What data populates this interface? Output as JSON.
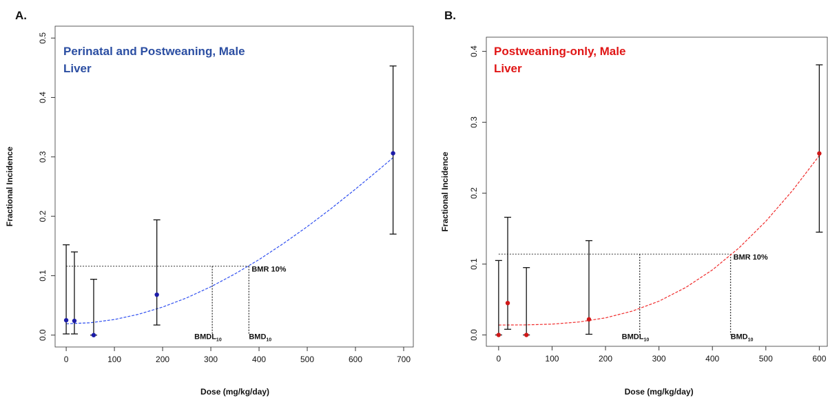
{
  "chart_data": [
    {
      "type": "scatter",
      "panel_label": "A.",
      "title_lines": [
        "Perinatal and Postweaning, Male",
        "Liver"
      ],
      "title_color": "#2b4ea2",
      "x_label": "Dose (mg/kg/day)",
      "y_label": "Fractional Incidence",
      "xlim": [
        -23,
        720
      ],
      "ylim": [
        -0.02,
        0.52
      ],
      "xticks": [
        0,
        100,
        200,
        300,
        400,
        500,
        600,
        700
      ],
      "yticks": [
        {
          "value": 0,
          "label": "0.0"
        },
        0.1,
        0.2,
        0.3,
        0.4,
        0.5
      ],
      "x": [
        0,
        17,
        57,
        188,
        678
      ],
      "values": [
        0.025,
        0.024,
        0.0,
        0.068,
        0.306
      ],
      "lower": [
        0.002,
        0.002,
        0.0,
        0.017,
        0.17
      ],
      "upper": [
        0.152,
        0.14,
        0.094,
        0.194,
        0.453
      ],
      "color": "#1c1ca8",
      "fit": {
        "x": [
          0,
          50,
          100,
          150,
          200,
          250,
          300,
          350,
          400,
          450,
          500,
          550,
          600,
          650,
          678
        ],
        "values": [
          0.019,
          0.0208,
          0.0262,
          0.035,
          0.0472,
          0.0627,
          0.0814,
          0.1029,
          0.1271,
          0.1538,
          0.1826,
          0.2133,
          0.2457,
          0.2794,
          0.2987
        ],
        "color": "#2f4ff0"
      },
      "bmr": {
        "level": 0.116,
        "label": "BMR 10%"
      },
      "bmdl": {
        "value": 303,
        "label": "BMDL",
        "subscript": "10"
      },
      "bmd": {
        "value": 379,
        "label": "BMD",
        "subscript": "10"
      }
    },
    {
      "type": "scatter",
      "panel_label": "B.",
      "title_lines": [
        "Postweaning-only, Male",
        "Liver"
      ],
      "title_color": "#e01515",
      "x_label": "Dose (mg/kg/day)",
      "y_label": "Fractional Incidence",
      "xlim": [
        -23,
        615
      ],
      "ylim": [
        -0.016,
        0.42
      ],
      "xticks": [
        0,
        100,
        200,
        300,
        400,
        500,
        600
      ],
      "yticks": [
        {
          "value": 0,
          "label": "0.0"
        },
        0.1,
        0.2,
        0.3,
        0.4
      ],
      "x": [
        0,
        17,
        52,
        169,
        600
      ],
      "values": [
        0.0,
        0.045,
        0.0,
        0.022,
        0.256
      ],
      "lower": [
        0.0,
        0.008,
        0.0,
        0.001,
        0.145
      ],
      "upper": [
        0.105,
        0.166,
        0.095,
        0.133,
        0.381
      ],
      "color": "#d01818",
      "fit": {
        "x": [
          0,
          50,
          100,
          150,
          200,
          250,
          300,
          350,
          400,
          450,
          500,
          550,
          600
        ],
        "values": [
          0.014,
          0.0142,
          0.0153,
          0.0183,
          0.0241,
          0.0336,
          0.0476,
          0.0669,
          0.0918,
          0.123,
          0.1603,
          0.2038,
          0.253
        ],
        "color": "#f02a2a"
      },
      "bmr": {
        "level": 0.114,
        "label": "BMR 10%"
      },
      "bmdl": {
        "value": 264,
        "label": "BMDL",
        "subscript": "10"
      },
      "bmd": {
        "value": 434,
        "label": "BMD",
        "subscript": "10"
      }
    }
  ]
}
